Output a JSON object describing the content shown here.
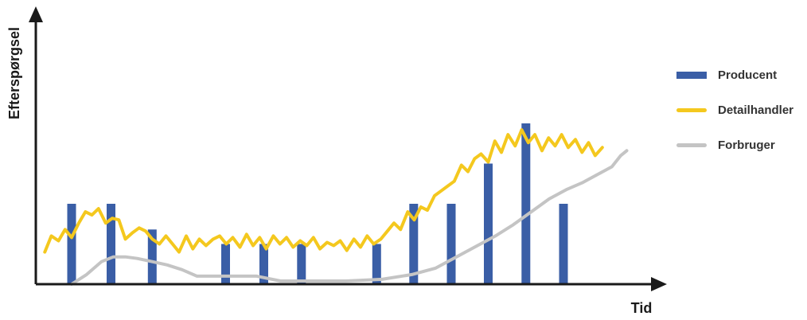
{
  "chart_data": {
    "type": "bar",
    "xlabel": "Tid",
    "ylabel": "Efterspørgsel",
    "xlim": [
      0,
      100
    ],
    "ylim": [
      0,
      100
    ],
    "legend_position": "right",
    "grid": false,
    "colors": {
      "producer": "#3a5ea6",
      "retailer": "#f4c81e",
      "consumer": "#c4c4c4",
      "axis": "#1a1a1a"
    },
    "series": [
      {
        "name": "Producent",
        "kind": "bar",
        "x": [
          6.0,
          12.6,
          19.5,
          31.8,
          38.2,
          44.5,
          57.1,
          63.3,
          69.6,
          75.8,
          82.1,
          88.4
        ],
        "values": [
          50,
          50,
          34,
          25,
          25,
          25,
          25,
          50,
          50,
          75,
          100,
          50
        ]
      },
      {
        "name": "Detailhandler",
        "kind": "line",
        "x": [
          1.5,
          2.6,
          3.8,
          4.9,
          6.0,
          7.2,
          8.3,
          9.4,
          10.5,
          11.7,
          12.8,
          13.9,
          15.0,
          16.2,
          17.3,
          18.4,
          19.5,
          20.7,
          21.8,
          22.9,
          24.0,
          25.2,
          26.3,
          27.4,
          28.5,
          29.7,
          30.8,
          31.9,
          33.0,
          34.2,
          35.3,
          36.4,
          37.5,
          38.6,
          39.8,
          40.9,
          42.0,
          43.1,
          44.3,
          45.4,
          46.5,
          47.6,
          48.8,
          49.9,
          51.0,
          52.1,
          53.3,
          54.4,
          55.5,
          56.6,
          57.8,
          58.9,
          60.0,
          61.1,
          62.3,
          63.4,
          64.5,
          65.6,
          66.8,
          67.9,
          69.0,
          70.1,
          71.3,
          72.4,
          73.5,
          74.6,
          75.8,
          76.9,
          78.0,
          79.1,
          80.3,
          81.4,
          82.5,
          83.6,
          84.8,
          85.9,
          87.0,
          88.1,
          89.2,
          90.4,
          91.5,
          92.6,
          93.7,
          94.9
        ],
        "values": [
          20,
          30,
          27,
          34,
          29,
          38,
          45,
          43,
          47,
          38,
          41,
          40,
          28,
          32,
          35,
          33,
          28,
          25,
          30,
          25,
          20,
          30,
          22,
          28,
          24,
          28,
          30,
          25,
          29,
          23,
          31,
          24,
          29,
          22,
          30,
          25,
          29,
          23,
          27,
          24,
          29,
          22,
          26,
          24,
          27,
          21,
          28,
          23,
          30,
          25,
          28,
          33,
          38,
          34,
          45,
          40,
          48,
          46,
          55,
          58,
          61,
          64,
          74,
          70,
          78,
          81,
          76,
          89,
          82,
          93,
          86,
          96,
          88,
          93,
          83,
          91,
          86,
          93,
          85,
          90,
          82,
          88,
          80,
          85
        ]
      },
      {
        "name": "Forbruger",
        "kind": "line",
        "x": [
          6.0,
          8.5,
          11.0,
          13.0,
          15.0,
          17.0,
          19.5,
          22.0,
          24.5,
          27.0,
          31.0,
          37.0,
          41.0,
          46.0,
          52.0,
          58.0,
          63.0,
          67.0,
          71.0,
          74.0,
          77.0,
          80.0,
          83.0,
          86.0,
          89.0,
          91.5,
          94.0,
          96.5,
          98.0,
          99.0
        ],
        "values": [
          0,
          6,
          14,
          17,
          17,
          16,
          14,
          12,
          9,
          5,
          5,
          5,
          2,
          2,
          2,
          3,
          6,
          10,
          18,
          24,
          30,
          37,
          45,
          53,
          59,
          63,
          68,
          73,
          80,
          83
        ]
      }
    ]
  }
}
